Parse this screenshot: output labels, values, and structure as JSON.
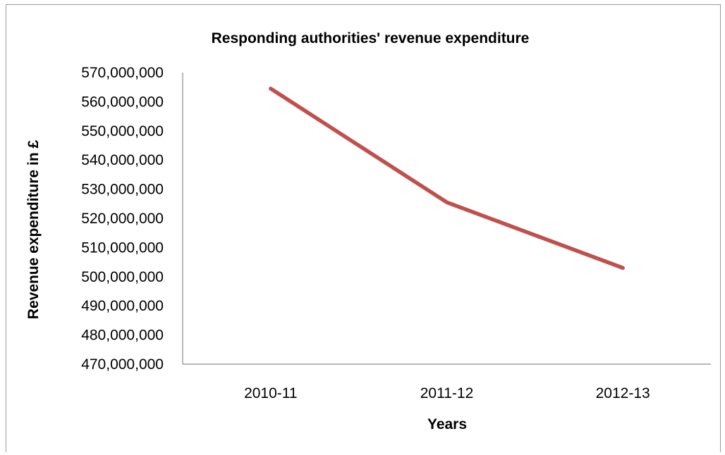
{
  "chart_data": {
    "type": "line",
    "title": "Responding authorities' revenue expenditure",
    "xlabel": "Years",
    "ylabel": "Revenue expenditure in £",
    "categories": [
      "2010-11",
      "2011-12",
      "2012-13"
    ],
    "series": [
      {
        "values": [
          564500000,
          525500000,
          503000000
        ],
        "color": "#c0504d"
      }
    ],
    "ylim": [
      470000000,
      570000000
    ],
    "yticks": [
      470000000,
      480000000,
      490000000,
      500000000,
      510000000,
      520000000,
      530000000,
      540000000,
      550000000,
      560000000,
      570000000
    ],
    "ytick_labels": [
      "470,000,000",
      "480,000,000",
      "490,000,000",
      "500,000,000",
      "510,000,000",
      "520,000,000",
      "530,000,000",
      "540,000,000",
      "550,000,000",
      "560,000,000",
      "570,000,000"
    ],
    "grid": false,
    "legend": "none"
  }
}
